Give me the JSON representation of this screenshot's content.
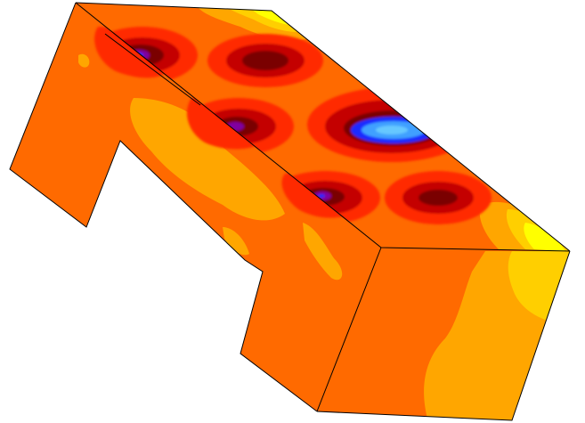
{
  "figure": {
    "kind": "3d-contour-plot",
    "colormap": [
      "#1e2cff",
      "#3fa0ff",
      "#8000a0",
      "#7a0000",
      "#c40000",
      "#ff2a00",
      "#ff6a00",
      "#ffa600",
      "#ffcf00",
      "#ffff00"
    ],
    "background": "#ffffff",
    "edge_color": "#000000",
    "faces": [
      "top-face",
      "front-face",
      "right-face"
    ],
    "hot_spots": 6,
    "cold_spot": 1
  }
}
